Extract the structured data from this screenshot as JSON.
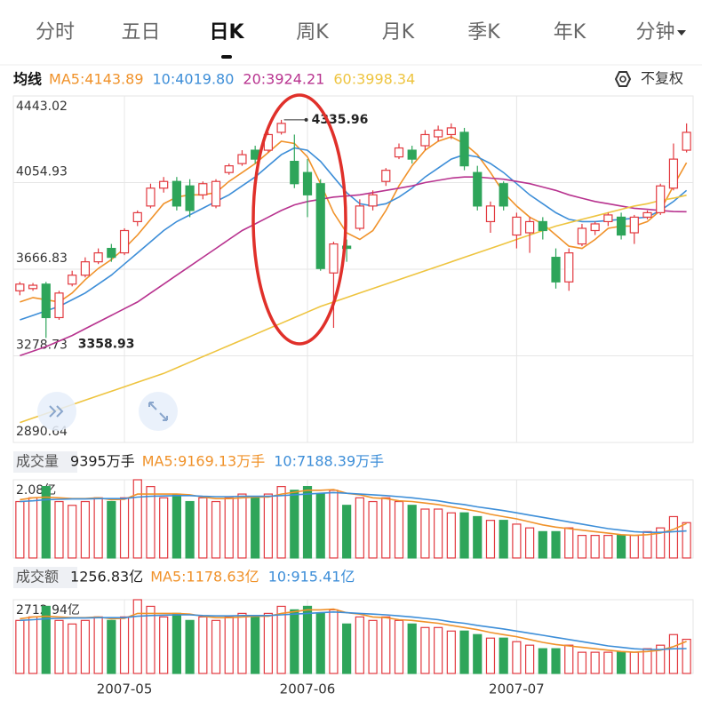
{
  "tabs": [
    "分时",
    "五日",
    "日K",
    "周K",
    "月K",
    "季K",
    "年K",
    "分钟"
  ],
  "active_tab": 2,
  "adjust_label": "不复权",
  "chart_data": [
    {
      "type": "candlestick",
      "legend_title": "均线",
      "categories": [
        null,
        null,
        null,
        null,
        null,
        null,
        null,
        null,
        "2007-05",
        null,
        null,
        null,
        null,
        null,
        null,
        null,
        null,
        null,
        null,
        null,
        null,
        null,
        "2007-06",
        null,
        null,
        null,
        null,
        null,
        null,
        null,
        null,
        null,
        null,
        null,
        null,
        null,
        null,
        null,
        "2007-07",
        null,
        null,
        null,
        null,
        null,
        null,
        null,
        null,
        null,
        null,
        null,
        null,
        null
      ],
      "open": [
        3570,
        3580,
        3600,
        3450,
        3600,
        3640,
        3700,
        3760,
        3740,
        3880,
        3950,
        4030,
        4060,
        4040,
        4000,
        3950,
        4100,
        4140,
        4200,
        4200,
        4280,
        4150,
        4100,
        4050,
        3650,
        3770,
        3850,
        3950,
        4060,
        4170,
        4200,
        4220,
        4260,
        4270,
        4280,
        4100,
        3880,
        4050,
        3820,
        3830,
        3880,
        3720,
        3610,
        3780,
        3840,
        3880,
        3900,
        3830,
        3900,
        3920,
        4030,
        4200
      ],
      "high": [
        3610,
        3605,
        3610,
        3570,
        3660,
        3720,
        3760,
        3780,
        3850,
        3930,
        4050,
        4080,
        4080,
        4070,
        4060,
        4070,
        4140,
        4200,
        4220,
        4280,
        4335.96,
        4270,
        4160,
        4070,
        3790,
        3800,
        3980,
        4020,
        4120,
        4230,
        4220,
        4290,
        4310,
        4320,
        4300,
        4130,
        3970,
        4060,
        3920,
        3900,
        3900,
        3760,
        3760,
        3870,
        3880,
        3920,
        3920,
        3910,
        3930,
        4050,
        4230,
        4320
      ],
      "low": [
        3550,
        3570,
        3358.93,
        3440,
        3590,
        3630,
        3690,
        3700,
        3730,
        3860,
        3940,
        4010,
        3930,
        3900,
        3980,
        3940,
        4090,
        4130,
        4140,
        4190,
        4270,
        4030,
        3900,
        3660,
        3404,
        3700,
        3840,
        3930,
        4040,
        4160,
        4140,
        4200,
        4240,
        4250,
        4110,
        3930,
        3830,
        3930,
        3760,
        3740,
        3800,
        3580,
        3570,
        3770,
        3820,
        3860,
        3800,
        3780,
        3890,
        3910,
        4020,
        4190
      ],
      "close": [
        3600,
        3595,
        3450,
        3560,
        3640,
        3700,
        3740,
        3720,
        3840,
        3920,
        4030,
        4060,
        3950,
        3930,
        4050,
        4060,
        4130,
        4180,
        4160,
        4270,
        4320,
        4050,
        4000,
        3670,
        3780,
        3760,
        3950,
        4000,
        4110,
        4210,
        4160,
        4270,
        4290,
        4300,
        4130,
        3950,
        3950,
        3950,
        3900,
        3880,
        3840,
        3610,
        3740,
        3850,
        3870,
        3910,
        3820,
        3900,
        3920,
        4040,
        4160,
        4280
      ],
      "up_color": "#e2393f",
      "down_color": "#2ea55a",
      "series": [
        {
          "name": "MA5:4143.89",
          "color": "#f0922a",
          "values": [
            3520,
            3540,
            3530,
            3520,
            3560,
            3620,
            3670,
            3710,
            3760,
            3820,
            3890,
            3960,
            3990,
            4000,
            4000,
            4010,
            4060,
            4100,
            4140,
            4190,
            4240,
            4230,
            4170,
            4050,
            3920,
            3830,
            3800,
            3840,
            3930,
            4040,
            4130,
            4200,
            4240,
            4260,
            4230,
            4180,
            4100,
            4010,
            3950,
            3900,
            3870,
            3820,
            3770,
            3760,
            3800,
            3850,
            3860,
            3860,
            3880,
            3930,
            4040,
            4143.89
          ]
        },
        {
          "name": "10:4019.80",
          "color": "#3d8ed8",
          "values": [
            3440,
            3460,
            3480,
            3500,
            3530,
            3560,
            3600,
            3640,
            3690,
            3740,
            3790,
            3840,
            3880,
            3910,
            3940,
            3970,
            4000,
            4040,
            4080,
            4130,
            4180,
            4210,
            4200,
            4150,
            4080,
            4010,
            3960,
            3950,
            3960,
            3990,
            4030,
            4080,
            4120,
            4160,
            4180,
            4170,
            4140,
            4100,
            4050,
            4000,
            3960,
            3920,
            3890,
            3880,
            3880,
            3885,
            3890,
            3895,
            3900,
            3930,
            3970,
            4019.8
          ]
        },
        {
          "name": "20:3924.21",
          "color": "#b8338f",
          "values": [
            3280,
            3300,
            3320,
            3345,
            3370,
            3400,
            3430,
            3460,
            3490,
            3520,
            3560,
            3600,
            3640,
            3680,
            3720,
            3760,
            3800,
            3840,
            3870,
            3900,
            3930,
            3955,
            3970,
            3980,
            3990,
            3995,
            4000,
            4010,
            4020,
            4030,
            4040,
            4055,
            4065,
            4075,
            4080,
            4080,
            4075,
            4070,
            4060,
            4050,
            4035,
            4020,
            4000,
            3985,
            3970,
            3960,
            3950,
            3940,
            3935,
            3930,
            3925,
            3924.21
          ]
        },
        {
          "name": "60:3998.34",
          "color": "#eec43f",
          "values": [
            2980,
            3000,
            3020,
            3040,
            3060,
            3080,
            3100,
            3120,
            3140,
            3160,
            3180,
            3200,
            3225,
            3250,
            3275,
            3300,
            3325,
            3350,
            3375,
            3400,
            3425,
            3450,
            3475,
            3500,
            3520,
            3540,
            3560,
            3580,
            3600,
            3620,
            3640,
            3660,
            3680,
            3700,
            3720,
            3740,
            3760,
            3780,
            3800,
            3820,
            3840,
            3860,
            3875,
            3890,
            3905,
            3920,
            3935,
            3950,
            3960,
            3975,
            3985,
            3998.34
          ]
        }
      ],
      "ylim": [
        2890.64,
        4443.02
      ],
      "yticks": [
        4443.02,
        4054.93,
        3666.83,
        3278.73,
        2890.64
      ],
      "max_label": 4335.96,
      "min_label": 3358.93,
      "grid": true
    },
    {
      "type": "bar",
      "title": "成交量",
      "subtitle": "9395万手",
      "values": [
        1.5,
        1.6,
        1.9,
        1.5,
        1.4,
        1.5,
        1.6,
        1.5,
        1.6,
        2.08,
        1.9,
        1.6,
        1.7,
        1.5,
        1.6,
        1.5,
        1.6,
        1.7,
        1.6,
        1.7,
        1.9,
        1.8,
        1.9,
        1.7,
        1.8,
        1.4,
        1.6,
        1.5,
        1.6,
        1.5,
        1.4,
        1.3,
        1.3,
        1.2,
        1.2,
        1.1,
        1.0,
        1.0,
        0.9,
        0.8,
        0.7,
        0.7,
        0.8,
        0.6,
        0.6,
        0.6,
        0.6,
        0.6,
        0.7,
        0.8,
        1.1,
        0.9395
      ],
      "series": [
        {
          "name": "MA5:9169.13万手",
          "color": "#f0922a",
          "values": [
            1.55,
            1.6,
            1.62,
            1.6,
            1.58,
            1.58,
            1.6,
            1.55,
            1.56,
            1.7,
            1.7,
            1.7,
            1.7,
            1.68,
            1.62,
            1.58,
            1.58,
            1.6,
            1.62,
            1.62,
            1.7,
            1.75,
            1.8,
            1.8,
            1.82,
            1.72,
            1.68,
            1.6,
            1.58,
            1.52,
            1.5,
            1.46,
            1.42,
            1.36,
            1.3,
            1.24,
            1.16,
            1.1,
            1.04,
            0.96,
            0.88,
            0.82,
            0.78,
            0.74,
            0.7,
            0.66,
            0.62,
            0.6,
            0.62,
            0.66,
            0.76,
            0.916913
          ]
        },
        {
          "name": "10:7188.39万手",
          "color": "#3d8ed8",
          "values": [
            1.5,
            1.52,
            1.55,
            1.56,
            1.57,
            1.57,
            1.58,
            1.58,
            1.58,
            1.62,
            1.64,
            1.65,
            1.66,
            1.66,
            1.64,
            1.63,
            1.63,
            1.64,
            1.64,
            1.64,
            1.66,
            1.68,
            1.7,
            1.72,
            1.74,
            1.72,
            1.7,
            1.68,
            1.66,
            1.63,
            1.6,
            1.56,
            1.52,
            1.46,
            1.42,
            1.36,
            1.31,
            1.26,
            1.2,
            1.14,
            1.08,
            1.02,
            0.96,
            0.9,
            0.84,
            0.78,
            0.74,
            0.7,
            0.68,
            0.68,
            0.7,
            0.718839
          ]
        }
      ],
      "ylim": [
        0,
        2.08
      ],
      "yticks": [
        {
          "value": 2.08,
          "label": "2.08亿"
        }
      ]
    },
    {
      "type": "bar",
      "title": "成交额",
      "subtitle": "1256.83亿",
      "values": [
        1950,
        2080,
        2470,
        1950,
        1820,
        1950,
        2080,
        1950,
        2080,
        2712.94,
        2470,
        2080,
        2210,
        1950,
        2080,
        1950,
        2080,
        2210,
        2080,
        2210,
        2470,
        2340,
        2470,
        2210,
        2340,
        1820,
        2080,
        1950,
        2080,
        1950,
        1820,
        1690,
        1690,
        1560,
        1560,
        1430,
        1300,
        1300,
        1170,
        1040,
        910,
        910,
        1040,
        780,
        780,
        780,
        780,
        780,
        910,
        1040,
        1430,
        1256.83
      ],
      "series": [
        {
          "name": "MA5:1178.63亿",
          "color": "#f0922a",
          "values": [
            2015,
            2080,
            2106,
            2080,
            2054,
            2054,
            2080,
            2015,
            2028,
            2210,
            2210,
            2210,
            2210,
            2184,
            2106,
            2054,
            2054,
            2080,
            2106,
            2106,
            2210,
            2275,
            2340,
            2340,
            2366,
            2236,
            2184,
            2080,
            2054,
            1976,
            1950,
            1898,
            1846,
            1768,
            1690,
            1612,
            1508,
            1430,
            1352,
            1248,
            1144,
            1066,
            1014,
            962,
            910,
            858,
            806,
            780,
            806,
            858,
            988,
            1178.63
          ]
        },
        {
          "name": "10:915.41亿",
          "color": "#3d8ed8",
          "values": [
            1950,
            1976,
            2015,
            2028,
            2041,
            2041,
            2054,
            2054,
            2054,
            2106,
            2132,
            2145,
            2158,
            2158,
            2132,
            2119,
            2119,
            2132,
            2132,
            2132,
            2158,
            2184,
            2210,
            2236,
            2262,
            2236,
            2210,
            2184,
            2158,
            2119,
            2080,
            2028,
            1976,
            1898,
            1846,
            1768,
            1703,
            1638,
            1560,
            1482,
            1404,
            1326,
            1248,
            1170,
            1092,
            1014,
            962,
            910,
            884,
            884,
            910,
            915.41
          ]
        }
      ],
      "ylim": [
        0,
        2712.94
      ],
      "yticks": [
        {
          "value": 2712.94,
          "label": "2712.94亿"
        }
      ]
    }
  ]
}
